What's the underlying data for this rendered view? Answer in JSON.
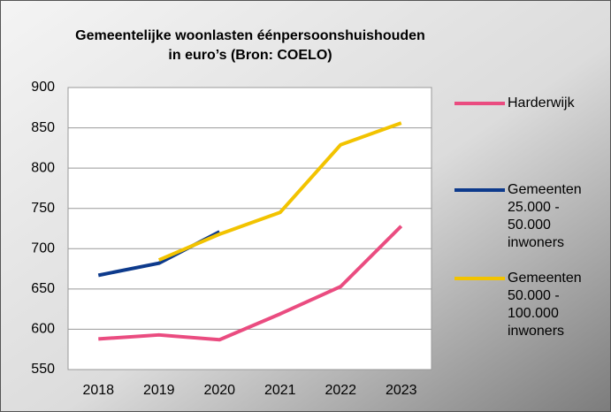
{
  "chart_data": {
    "type": "line",
    "title": [
      "Gemeentelijke woonlasten éénpersoonshuishouden",
      "in euro’s (Bron: COELO)"
    ],
    "categories": [
      "2018",
      "2019",
      "2020",
      "2021",
      "2022",
      "2023"
    ],
    "series": [
      {
        "name": "Harderwijk",
        "color": "#ea4c80",
        "values": [
          588,
          593,
          587,
          619,
          653,
          728
        ]
      },
      {
        "name": "Gemeenten 25.000 - 50.000 inwoners",
        "color": "#0d3a8c",
        "values": [
          667,
          682,
          721,
          null,
          null,
          null
        ]
      },
      {
        "name": "Gemeenten 50.000 - 100.000 inwoners",
        "color": "#f2c300",
        "values": [
          null,
          686,
          718,
          745,
          829,
          856
        ]
      }
    ],
    "ylim": [
      550,
      900
    ],
    "yticks": [
      550,
      600,
      650,
      700,
      750,
      800,
      850,
      900
    ],
    "grid": true,
    "legend": "right"
  }
}
